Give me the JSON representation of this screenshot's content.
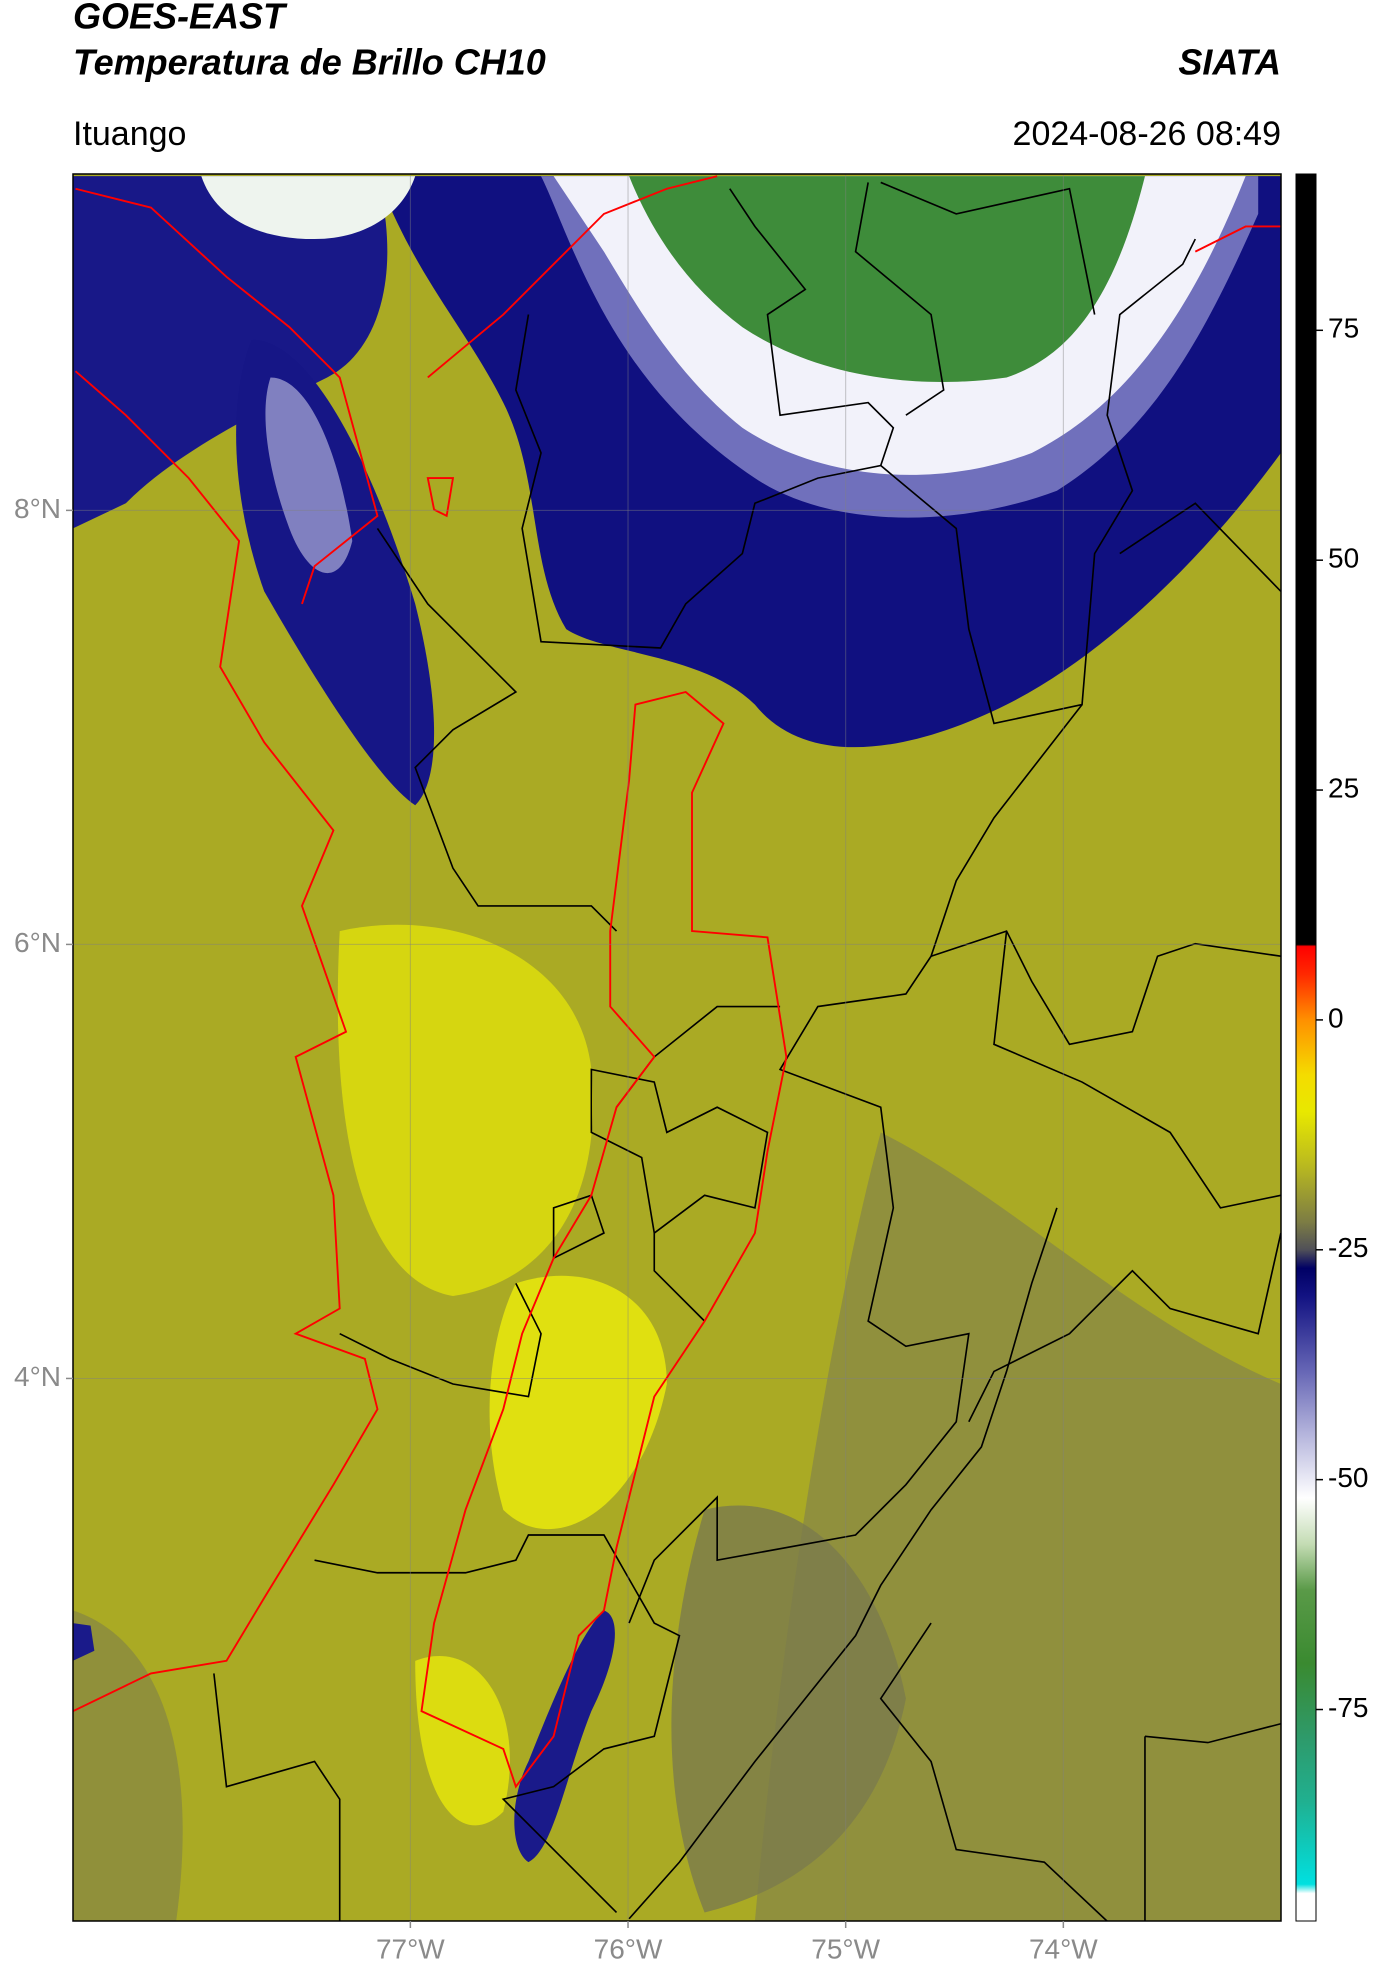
{
  "header": {
    "title": "GOES-EAST",
    "subtitle": "Temperatura de Brillo CH10",
    "source": "SIATA",
    "location": "Ituango",
    "datetime": "2024-08-26 08:49"
  },
  "chart_data": {
    "type": "map",
    "xlim": [
      -78.55,
      -73.0
    ],
    "ylim": [
      1.5,
      9.55
    ],
    "xticks": [
      {
        "value": -77,
        "label": "77°W"
      },
      {
        "value": -76,
        "label": "76°W"
      },
      {
        "value": -75,
        "label": "75°W"
      },
      {
        "value": -74,
        "label": "74°W"
      }
    ],
    "yticks": [
      {
        "value": 4,
        "label": "4°N"
      },
      {
        "value": 6,
        "label": "6°N"
      },
      {
        "value": 8,
        "label": "8°N"
      }
    ],
    "grid": true,
    "colorbar": {
      "clim": [
        -98,
        92
      ],
      "ticks": [
        -75,
        -50,
        -25,
        0,
        25,
        50,
        75
      ],
      "colormap": [
        {
          "value": -98,
          "color": "#ffffff"
        },
        {
          "value": -95,
          "color": "#ffffff"
        },
        {
          "value": -94,
          "color": "#00e0e0"
        },
        {
          "value": -85,
          "color": "#20b090"
        },
        {
          "value": -78,
          "color": "#2e9a6a"
        },
        {
          "value": -70,
          "color": "#3a8a30"
        },
        {
          "value": -62,
          "color": "#5a9a48"
        },
        {
          "value": -57,
          "color": "#c4dcb4"
        },
        {
          "value": -52,
          "color": "#ffffff"
        },
        {
          "value": -45,
          "color": "#b4b4dc"
        },
        {
          "value": -38,
          "color": "#6464b4"
        },
        {
          "value": -30,
          "color": "#121282"
        },
        {
          "value": -27,
          "color": "#000064"
        },
        {
          "value": -25,
          "color": "#505058"
        },
        {
          "value": -22,
          "color": "#7c7c44"
        },
        {
          "value": -16,
          "color": "#b8b820"
        },
        {
          "value": -10,
          "color": "#e8e800"
        },
        {
          "value": -6,
          "color": "#f4dc00"
        },
        {
          "value": 0,
          "color": "#ff9000"
        },
        {
          "value": 5,
          "color": "#ff2800"
        },
        {
          "value": 8,
          "color": "#ff0000"
        },
        {
          "value": 8.2,
          "color": "#000000"
        },
        {
          "value": 92,
          "color": "#000000"
        }
      ]
    }
  }
}
